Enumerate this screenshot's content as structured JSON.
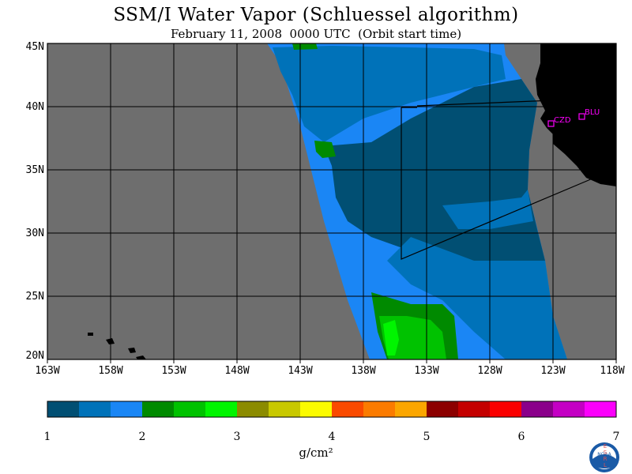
{
  "title": "SSM/I Water Vapor (Schluessel algorithm)",
  "subtitle": "February 11, 2008  0000 UTC  (Orbit start time)",
  "map": {
    "lat_labels": [
      "45N",
      "40N",
      "35N",
      "30N",
      "25N",
      "20N"
    ],
    "lon_labels": [
      "163W",
      "158W",
      "153W",
      "148W",
      "143W",
      "138W",
      "133W",
      "128W",
      "123W",
      "118W"
    ],
    "stations": [
      {
        "code": "CZD"
      },
      {
        "code": "BLU"
      }
    ],
    "colors": {
      "no_data": "#6e6e6e",
      "land": "#000000",
      "gridline": "#000000",
      "station_marker": "#ff00ff"
    }
  },
  "colorbar": {
    "units": "g/cm²",
    "tick_labels": [
      "1",
      "2",
      "3",
      "4",
      "5",
      "6",
      "7"
    ],
    "colors": [
      "#014f73",
      "#0072b9",
      "#1a86f5",
      "#008a00",
      "#00c200",
      "#00f500",
      "#8b8b00",
      "#c8c800",
      "#fbfb00",
      "#fa4a00",
      "#fb7b00",
      "#fba600",
      "#8c0000",
      "#c40000",
      "#fa0000",
      "#8a008a",
      "#c400c4",
      "#fb00fb"
    ]
  },
  "logo": {
    "left_letters": "ESRL",
    "right_letters": "PSD",
    "center_text": "NOAA"
  }
}
